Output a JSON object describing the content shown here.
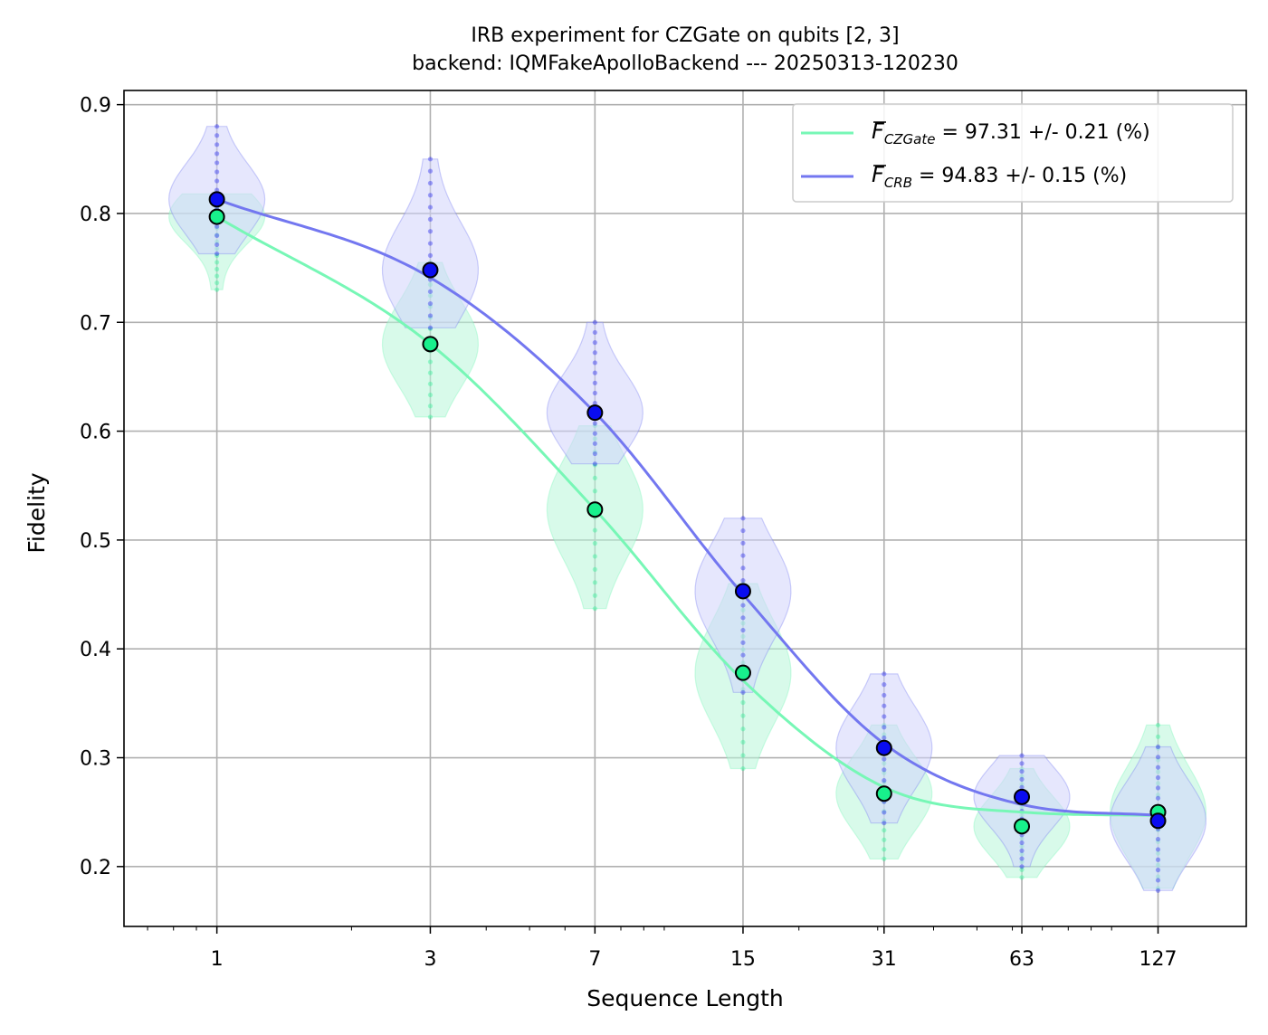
{
  "chart_data": {
    "type": "scatter",
    "title_line1": "IRB experiment for CZGate on qubits [2, 3]",
    "title_line2": "backend: IQMFakeApolloBackend --- 20250313-120230",
    "xlabel": "Sequence Length",
    "ylabel": "Fidelity",
    "x_scale": "log",
    "x_ticks": [
      1,
      3,
      7,
      15,
      31,
      63,
      127
    ],
    "x_tick_labels": [
      "1",
      "3",
      "7",
      "15",
      "31",
      "63",
      "127"
    ],
    "xlim": [
      0.62,
      200
    ],
    "ylim": [
      0.145,
      0.913
    ],
    "y_ticks": [
      0.2,
      0.3,
      0.4,
      0.5,
      0.6,
      0.7,
      0.8,
      0.9
    ],
    "y_tick_labels": [
      "0.2",
      "0.3",
      "0.4",
      "0.5",
      "0.6",
      "0.7",
      "0.8",
      "0.9"
    ],
    "grid": true,
    "legend_position": "top-right",
    "series": [
      {
        "key": "czgate",
        "legend_symbol": "F",
        "legend_subscript": "CZGate",
        "legend_value": " = 97.31 +/- 0.21 (%)",
        "line_color": "#77f7b6",
        "marker_color": "#18f08c",
        "violin_color": "#b8f5d8",
        "x": [
          1,
          3,
          7,
          15,
          31,
          63,
          127
        ],
        "mean": [
          0.797,
          0.68,
          0.528,
          0.378,
          0.267,
          0.237,
          0.25
        ],
        "violin_range": [
          [
            0.73,
            0.818
          ],
          [
            0.613,
            0.755
          ],
          [
            0.437,
            0.605
          ],
          [
            0.29,
            0.46
          ],
          [
            0.207,
            0.33
          ],
          [
            0.19,
            0.29
          ],
          [
            0.18,
            0.33
          ]
        ],
        "fit": [
          0.797,
          0.68,
          0.528,
          0.371,
          0.273,
          0.25,
          0.247
        ]
      },
      {
        "key": "crb",
        "legend_symbol": "F",
        "legend_subscript": "CRB",
        "legend_value": " = 94.83 +/- 0.15 (%)",
        "line_color": "#7377f0",
        "marker_color": "#0a0cf0",
        "violin_color": "#d2d3fb",
        "x": [
          1,
          3,
          7,
          15,
          31,
          63,
          127
        ],
        "mean": [
          0.813,
          0.748,
          0.617,
          0.453,
          0.309,
          0.264,
          0.242
        ],
        "violin_range": [
          [
            0.763,
            0.88
          ],
          [
            0.695,
            0.85
          ],
          [
            0.57,
            0.7
          ],
          [
            0.36,
            0.52
          ],
          [
            0.24,
            0.377
          ],
          [
            0.2,
            0.302
          ],
          [
            0.178,
            0.31
          ]
        ],
        "fit": [
          0.813,
          0.741,
          0.617,
          0.45,
          0.313,
          0.257,
          0.247
        ]
      }
    ]
  }
}
